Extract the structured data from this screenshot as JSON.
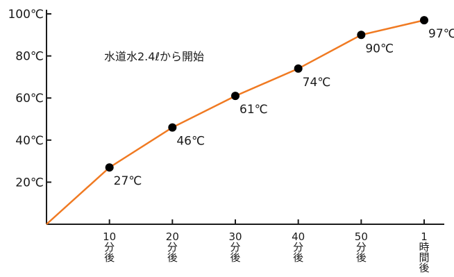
{
  "chart_data": {
    "type": "line",
    "x": [
      0,
      10,
      20,
      30,
      40,
      50,
      60
    ],
    "xtick_labels": [
      {
        "x": 10,
        "lines": [
          "10",
          "分",
          "後"
        ]
      },
      {
        "x": 20,
        "lines": [
          "20",
          "分",
          "後"
        ]
      },
      {
        "x": 30,
        "lines": [
          "30",
          "分",
          "後"
        ]
      },
      {
        "x": 40,
        "lines": [
          "40",
          "分",
          "後"
        ]
      },
      {
        "x": 50,
        "lines": [
          "50",
          "分",
          "後"
        ]
      },
      {
        "x": 60,
        "lines": [
          "1",
          "時",
          "間",
          "後"
        ]
      }
    ],
    "series": [
      {
        "values": [
          0,
          27,
          46,
          61,
          74,
          90,
          97
        ],
        "color": "#f07a22"
      }
    ],
    "markers": [
      {
        "x": 10,
        "y": 27,
        "label": "27℃"
      },
      {
        "x": 20,
        "y": 46,
        "label": "46℃"
      },
      {
        "x": 30,
        "y": 61,
        "label": "61℃"
      },
      {
        "x": 40,
        "y": 74,
        "label": "74℃"
      },
      {
        "x": 50,
        "y": 90,
        "label": "90℃"
      },
      {
        "x": 60,
        "y": 97,
        "label": "97℃"
      }
    ],
    "yticks": [
      {
        "value": 20,
        "label": "20℃"
      },
      {
        "value": 40,
        "label": "40℃"
      },
      {
        "value": 60,
        "label": "60℃"
      },
      {
        "value": 80,
        "label": "80℃"
      },
      {
        "value": 100,
        "label": "100℃"
      }
    ],
    "ylim": [
      0,
      100
    ],
    "xlim": [
      0,
      60
    ],
    "annotation": "水道水2.4ℓから開始",
    "grid": false,
    "marker_color": "#000000"
  }
}
